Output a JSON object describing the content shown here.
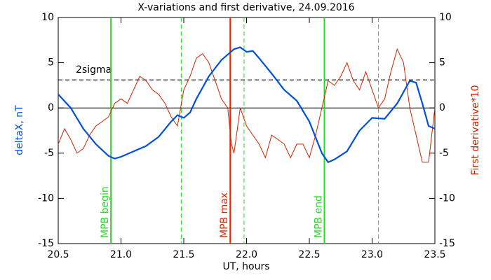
{
  "chart_data": {
    "type": "line",
    "title": "X-variations and first derivative, 24.09.2016",
    "x_label": "UT, hours",
    "y_label": "deltaX, nT",
    "y2_label": "First derivative*10",
    "xlim": [
      20.5,
      23.5
    ],
    "xticks": [
      20.5,
      {
        "value": 21,
        "label": "21.0"
      },
      21.5,
      {
        "value": 22,
        "label": "22.0"
      },
      22.5,
      {
        "value": 23,
        "label": "23.0"
      },
      23.5
    ],
    "ylim": [
      -15,
      10
    ],
    "yticks": [
      -15,
      -10,
      -5,
      0,
      5,
      10
    ],
    "y2lim": [
      -15,
      10
    ],
    "y2ticks": [
      -15,
      -10,
      -5,
      0,
      5,
      10
    ],
    "series": [
      {
        "name": "deltaX",
        "color": "#0050e0",
        "axis": "y",
        "x": [
          20.5,
          20.6,
          20.7,
          20.8,
          20.9,
          20.95,
          21.0,
          21.1,
          21.2,
          21.3,
          21.4,
          21.45,
          21.5,
          21.55,
          21.6,
          21.7,
          21.8,
          21.9,
          21.95,
          22.0,
          22.05,
          22.1,
          22.2,
          22.3,
          22.4,
          22.5,
          22.6,
          22.65,
          22.7,
          22.8,
          22.9,
          23.0,
          23.1,
          23.2,
          23.3,
          23.35,
          23.4,
          23.45,
          23.5
        ],
        "values": [
          1.5,
          0,
          -2.3,
          -4,
          -5.3,
          -5.6,
          -5.4,
          -4.8,
          -4.2,
          -3.2,
          -1.5,
          -0.8,
          -1.1,
          -0.5,
          1,
          3.5,
          5.3,
          6.5,
          6.7,
          6.2,
          6.3,
          5.5,
          3.8,
          2,
          0.8,
          -1.5,
          -5,
          -6,
          -5.7,
          -4.8,
          -2.5,
          -1.1,
          -1.2,
          0.5,
          3,
          2.8,
          0.5,
          -2,
          -2.3
        ]
      },
      {
        "name": "First derivative*10",
        "color": "#cc2200",
        "axis": "y2",
        "x": [
          20.5,
          20.55,
          20.6,
          20.65,
          20.7,
          20.75,
          20.8,
          20.85,
          20.9,
          20.95,
          21.0,
          21.05,
          21.1,
          21.15,
          21.2,
          21.25,
          21.3,
          21.35,
          21.4,
          21.45,
          21.5,
          21.55,
          21.6,
          21.65,
          21.7,
          21.75,
          21.8,
          21.85,
          21.88,
          21.9,
          21.95,
          22.0,
          22.05,
          22.1,
          22.15,
          22.2,
          22.25,
          22.3,
          22.35,
          22.4,
          22.45,
          22.5,
          22.55,
          22.6,
          22.65,
          22.7,
          22.75,
          22.8,
          22.85,
          22.9,
          22.95,
          23.0,
          23.05,
          23.1,
          23.15,
          23.2,
          23.25,
          23.3,
          23.35,
          23.4,
          23.45,
          23.5
        ],
        "values": [
          -4,
          -2.3,
          -3.5,
          -5,
          -4.5,
          -3,
          -2,
          -1.5,
          -1,
          0.5,
          1,
          0.5,
          2,
          3.5,
          3,
          2,
          1.5,
          0.5,
          -1,
          -2,
          2,
          3.5,
          5.5,
          6,
          5,
          3,
          1,
          0,
          -4,
          -5,
          0,
          -2,
          -3,
          -4,
          -5.5,
          -3,
          -3.5,
          -4,
          -5.5,
          -4,
          -4,
          -5.5,
          -3,
          0,
          3,
          2.5,
          3.5,
          5,
          3,
          2,
          4,
          2,
          0,
          1,
          4,
          6.5,
          5,
          0,
          -3,
          -6,
          -6,
          0
        ]
      }
    ],
    "hlines": [
      {
        "y": 3.1,
        "color": "#000000",
        "style": "dashed",
        "label": "2sigma"
      },
      {
        "y": 0,
        "color": "#000000",
        "style": "solid"
      }
    ],
    "vlines": [
      {
        "x": 20.92,
        "color": "#22dd22",
        "style": "solid",
        "label": "MPB begin"
      },
      {
        "x": 21.48,
        "color": "#22dd22",
        "style": "dashed"
      },
      {
        "x": 21.87,
        "color": "#ee2200",
        "style": "solid",
        "label": "MPB max"
      },
      {
        "x": 21.98,
        "color": "#22dd22",
        "style": "dashed"
      },
      {
        "x": 22.62,
        "color": "#22dd22",
        "style": "solid",
        "label": "MPB end"
      },
      {
        "x": 23.05,
        "color": "#22dd22",
        "style": "dashed"
      }
    ]
  }
}
